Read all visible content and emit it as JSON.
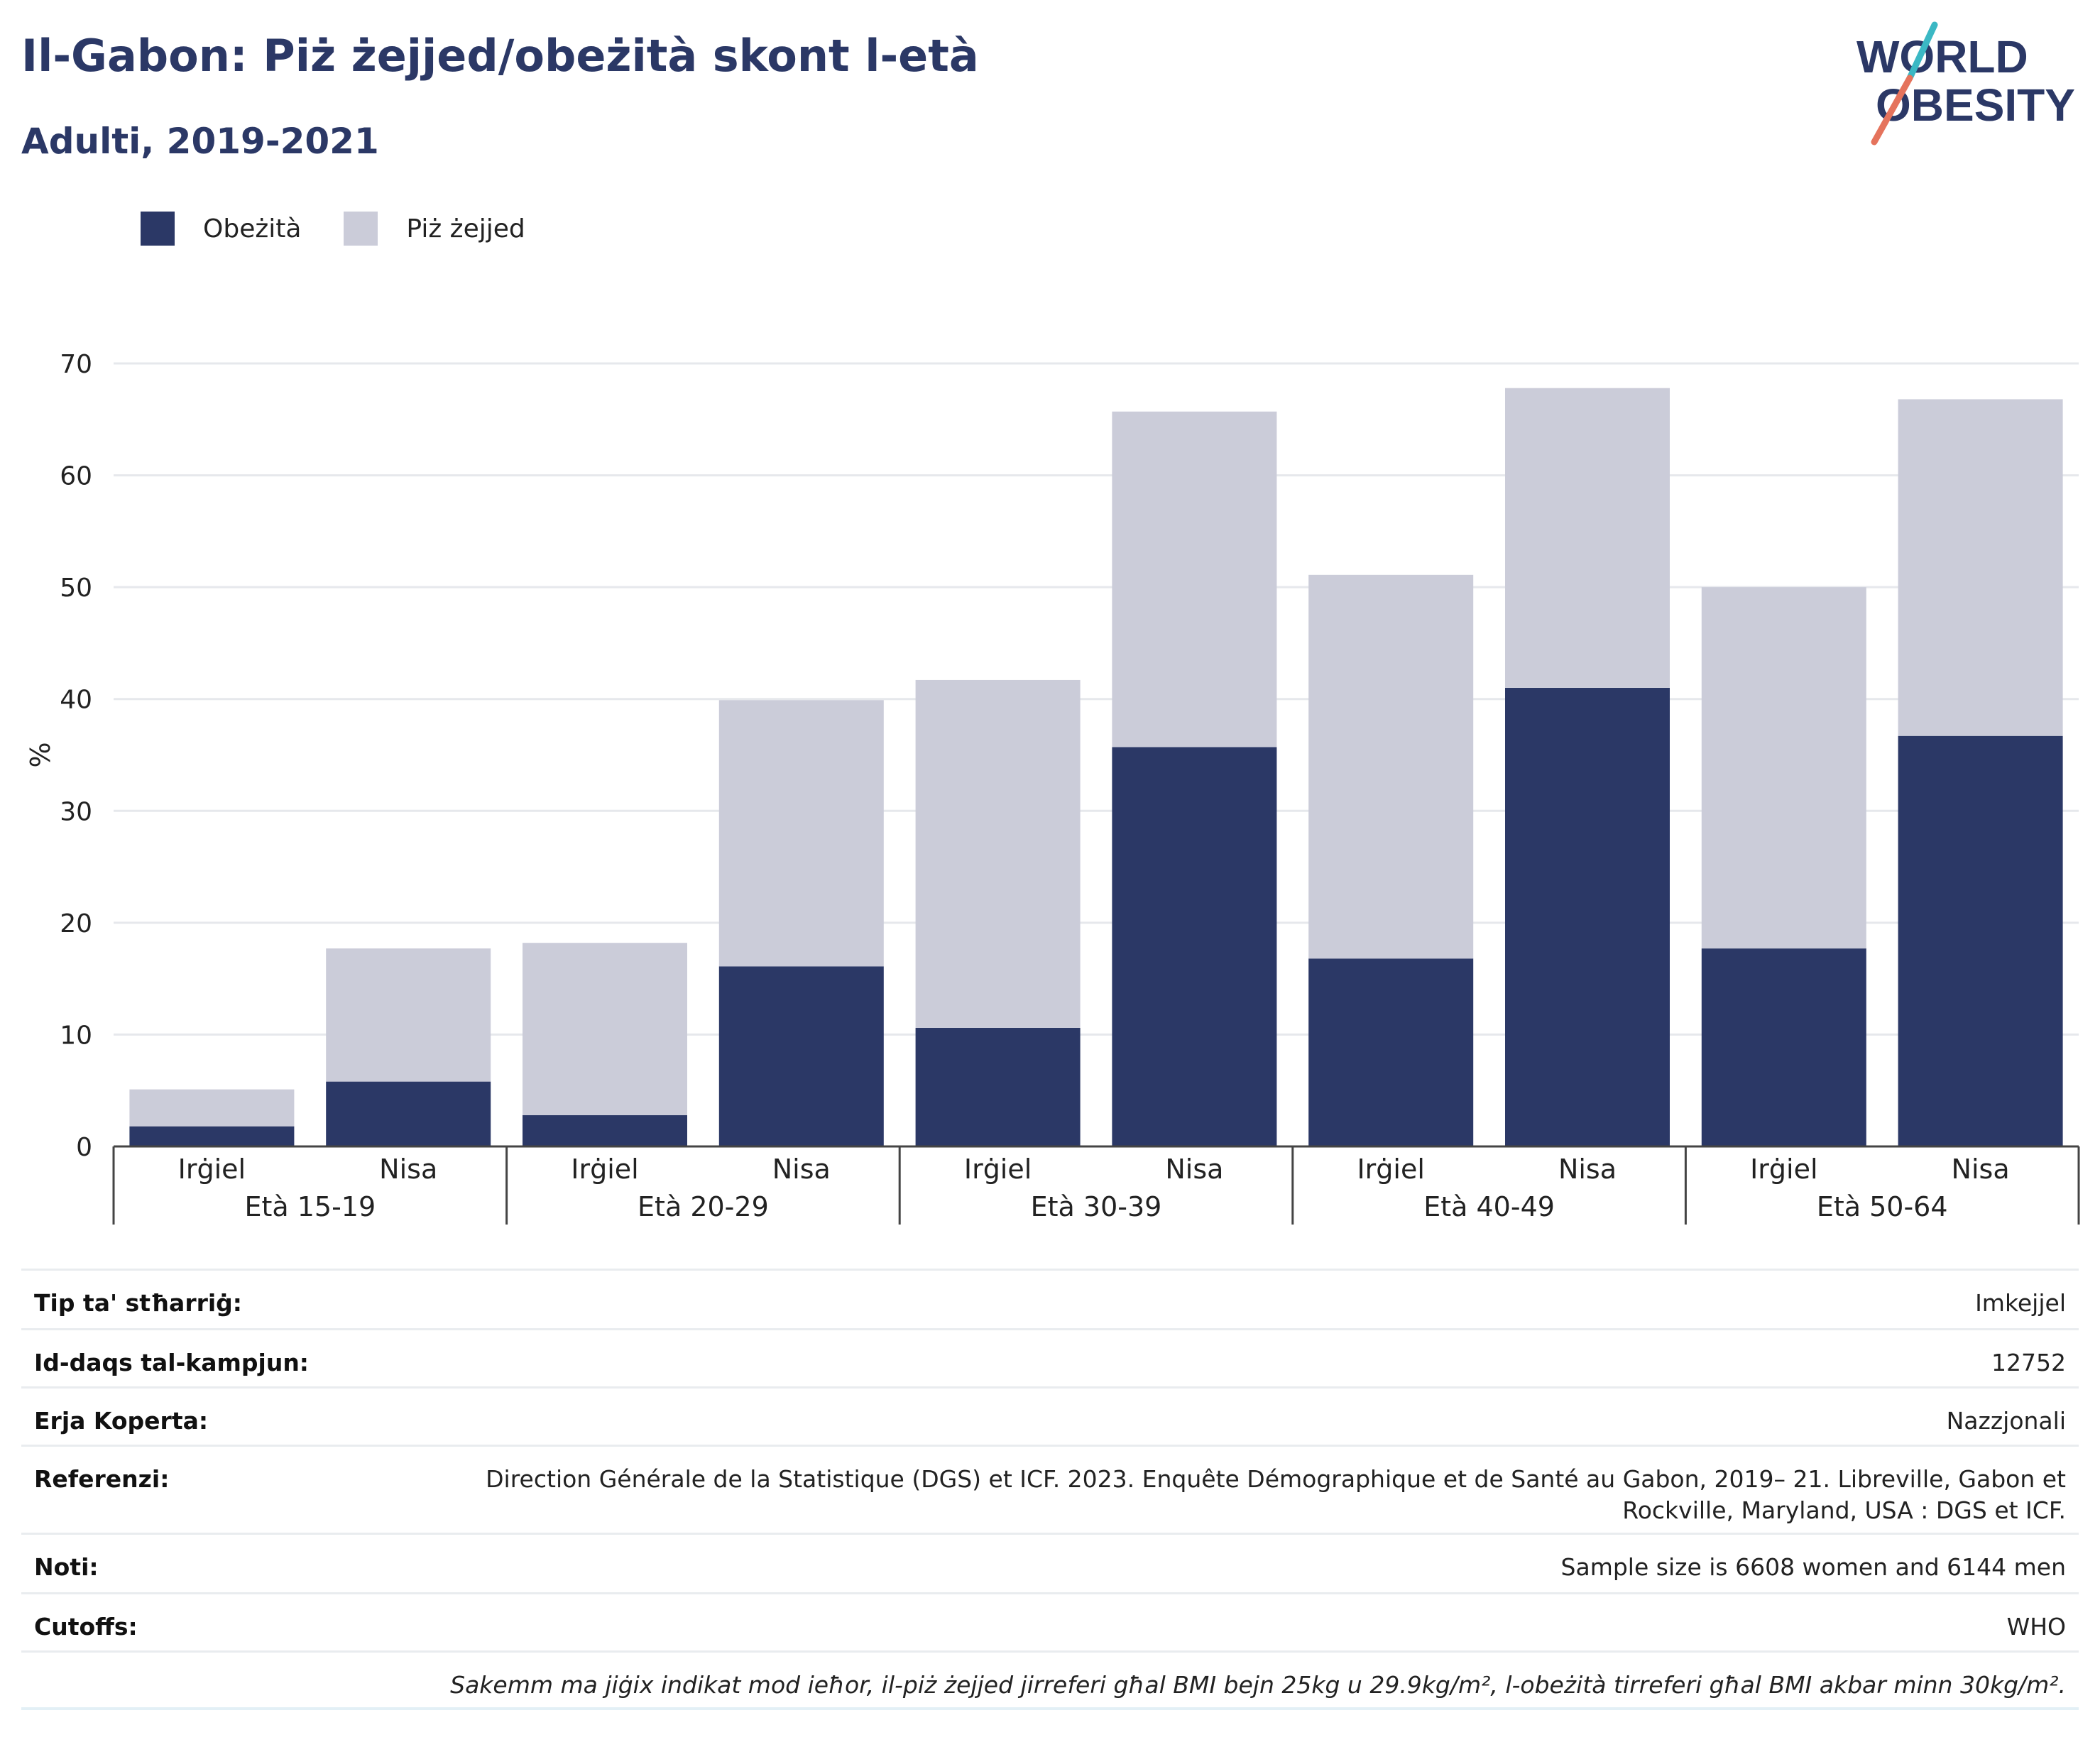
{
  "header": {
    "title": "Il-Gabon: Piż żejjed/obeżità skont l-età",
    "subtitle": "Adulti, 2019-2021"
  },
  "logo": {
    "line1": "WORLD",
    "line2": "OBESITY",
    "colors": {
      "text": "#2b3866",
      "slash_top": "#3bb8c4",
      "slash_bottom": "#e5735c"
    }
  },
  "legend": {
    "items": [
      {
        "label": "Obeżità",
        "color": "#2b3866"
      },
      {
        "label": "Piż żejjed",
        "color": "#cbccd9"
      }
    ]
  },
  "chart_data": {
    "type": "bar",
    "stacked": true,
    "ylabel": "%",
    "ylim": [
      0,
      70
    ],
    "yticks": [
      0,
      10,
      20,
      30,
      40,
      50,
      60,
      70
    ],
    "grid": true,
    "legend_position": "top-left",
    "groups": [
      "Età 15-19",
      "Età 20-29",
      "Età 30-39",
      "Età 40-49",
      "Età 50-64"
    ],
    "subcategories": [
      "Irġiel",
      "Nisa"
    ],
    "categories": [
      "Irġiel",
      "Nisa",
      "Irġiel",
      "Nisa",
      "Irġiel",
      "Nisa",
      "Irġiel",
      "Nisa",
      "Irġiel",
      "Nisa"
    ],
    "series": [
      {
        "name": "Obeżità",
        "color": "#2b3866",
        "values": [
          1.8,
          5.8,
          2.8,
          16.1,
          10.6,
          35.7,
          16.8,
          41.0,
          17.7,
          36.7
        ]
      },
      {
        "name": "Piż żejjed",
        "color": "#cbccd9",
        "values": [
          3.3,
          11.9,
          15.4,
          23.8,
          31.1,
          30.0,
          34.3,
          26.8,
          32.3,
          30.1
        ]
      }
    ]
  },
  "info": {
    "rows": [
      {
        "key": "Tip ta' stħarriġ:",
        "value": "Imkejjel"
      },
      {
        "key": "Id-daqs tal-kampjun:",
        "value": "12752"
      },
      {
        "key": "Erja Koperta:",
        "value": "Nazzjonali"
      },
      {
        "key": "Referenzi:",
        "value": "Direction Générale de la Statistique (DGS) et ICF. 2023. Enquête Démographique et de Santé au Gabon, 2019– 21. Libreville, Gabon et Rockville, Maryland, USA : DGS et ICF."
      },
      {
        "key": "Noti:",
        "value": "Sample size is 6608 women and 6144 men"
      },
      {
        "key": "Cutoffs:",
        "value": "WHO"
      }
    ],
    "note": "Sakemm ma jiġix indikat mod ieħor, il-piż żejjed jirreferi għal BMI bejn 25kg u 29.9kg/m², l-obeżità tirreferi għal BMI akbar minn 30kg/m²."
  }
}
